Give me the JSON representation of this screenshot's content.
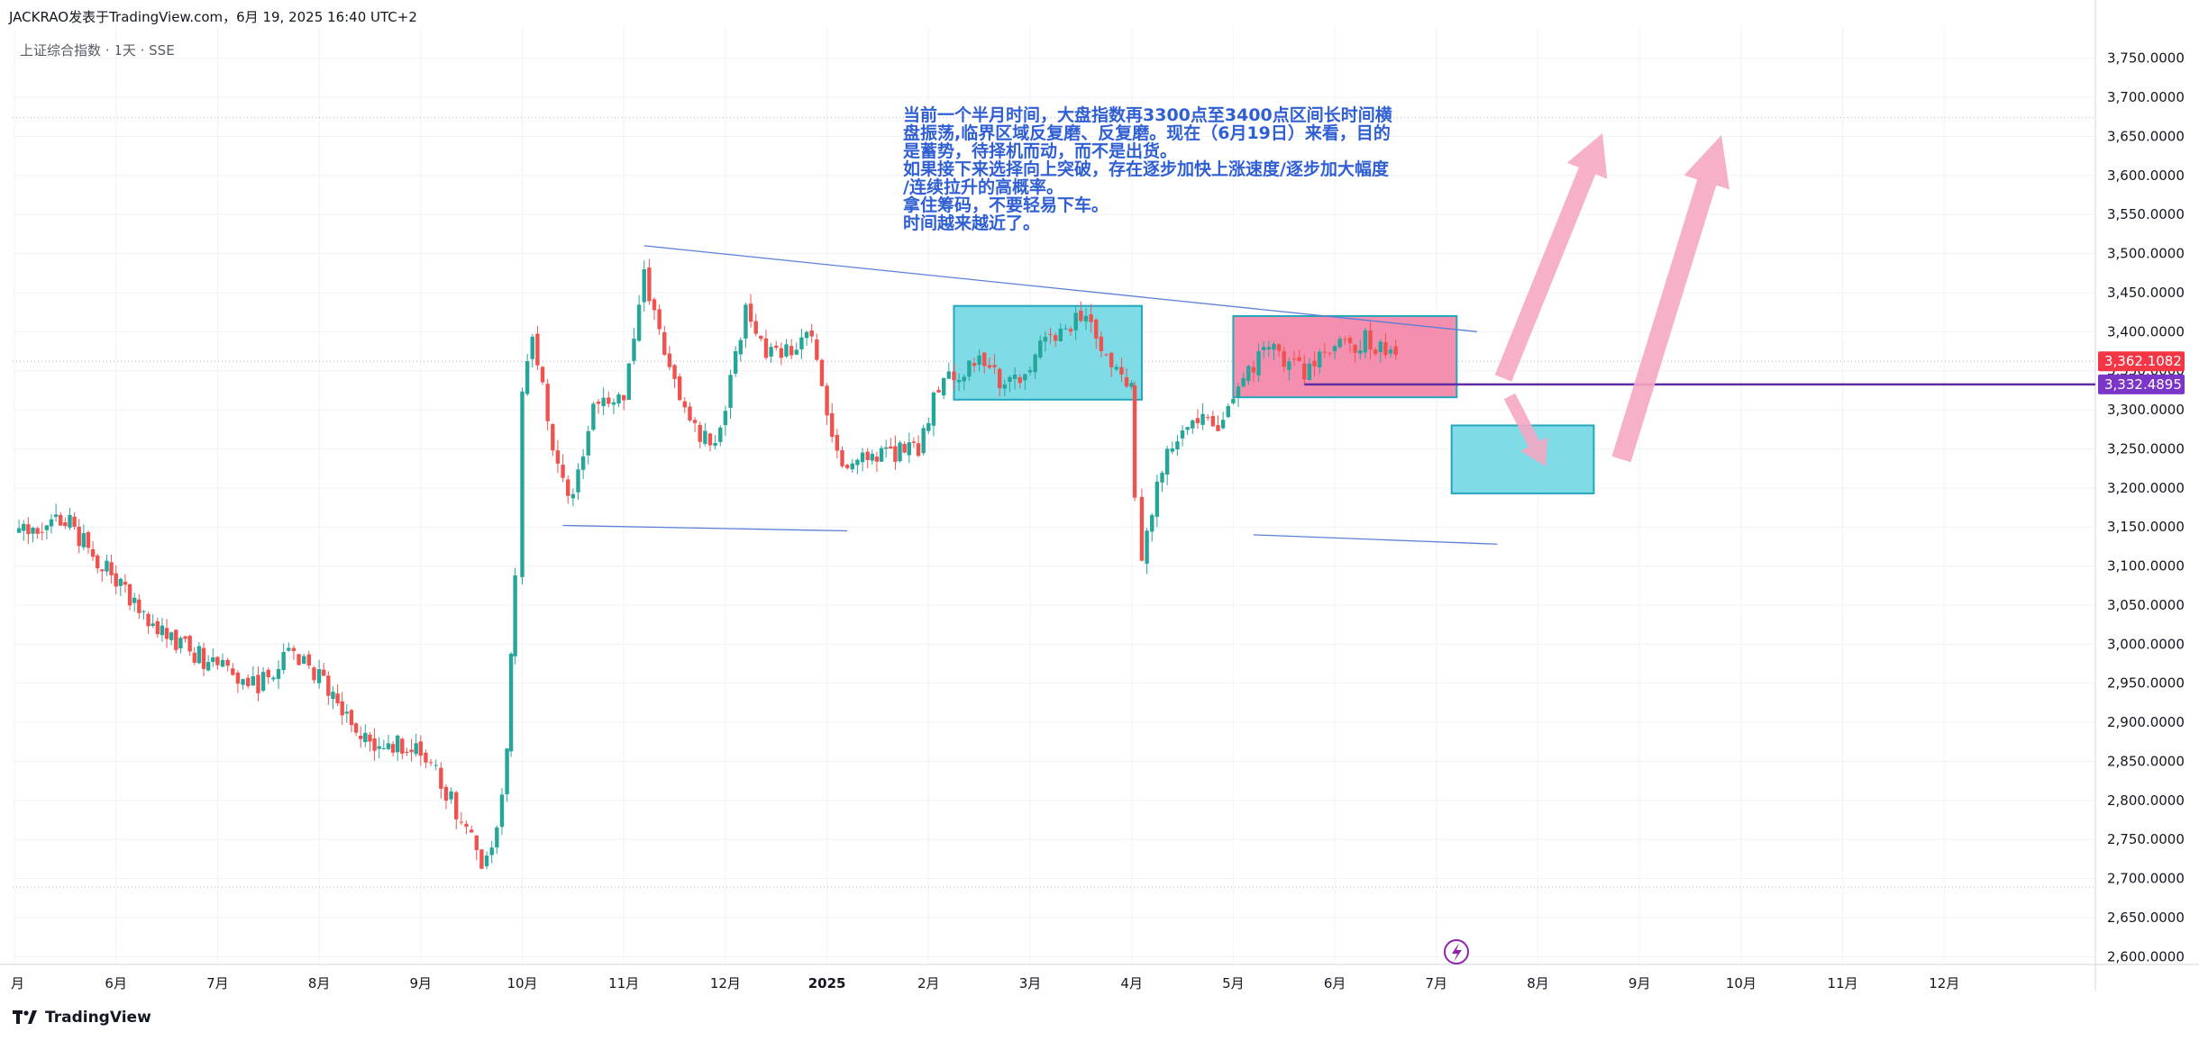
{
  "header": {
    "text": "JACKRAO发表于TradingView.com，6月 19, 2025 16:40 UTC+2"
  },
  "symbol_line": "上证综合指数 · 1天 · SSE",
  "annotation": {
    "lines": [
      "当前一个半月时间，大盘指数再3300点至3400点区间长时间横",
      "盘振荡,临界区域反复磨、反复磨。现在（6月19日）来看，目的",
      "是蓄势，待择机而动，而不是出货。",
      "如果接下来选择向上突破，存在逐步加快上涨速度/逐步加大幅度",
      "/连续拉升的高概率。",
      "拿住筹码，不要轻易下车。",
      "时间越来越近了。"
    ]
  },
  "footer": {
    "brand": "TradingView"
  },
  "colors": {
    "up": "#26a69a",
    "down": "#ef5350",
    "trendline": "#5b7fd6",
    "cyan_box": "#7fdce6",
    "pink_box": "#f58fb0",
    "arrow": "#f5a8c3",
    "last_price_tag": "#f23645",
    "level_tag": "#7b35c7"
  },
  "chart_data": {
    "type": "candlestick",
    "y_axis": {
      "ylim": [
        2590,
        3790
      ],
      "ticks": [
        "2,600.0000",
        "2,650.0000",
        "2,700.0000",
        "2,750.0000",
        "2,800.0000",
        "2,850.0000",
        "2,900.0000",
        "2,950.0000",
        "3,000.0000",
        "3,050.0000",
        "3,100.0000",
        "3,150.0000",
        "3,200.0000",
        "3,250.0000",
        "3,300.0000",
        "3,350.0000",
        "3,400.0000",
        "3,450.0000",
        "3,500.0000",
        "3,550.0000",
        "3,600.0000",
        "3,650.0000",
        "3,700.0000",
        "3,750.0000"
      ]
    },
    "x_axis": {
      "labels": [
        {
          "text": "月",
          "month_index": 0
        },
        {
          "text": "6月",
          "month_index": 1
        },
        {
          "text": "7月",
          "month_index": 2
        },
        {
          "text": "8月",
          "month_index": 3
        },
        {
          "text": "9月",
          "month_index": 4
        },
        {
          "text": "10月",
          "month_index": 5
        },
        {
          "text": "11月",
          "month_index": 6
        },
        {
          "text": "12月",
          "month_index": 7
        },
        {
          "text": "2025",
          "month_index": 8,
          "bold": true
        },
        {
          "text": "2月",
          "month_index": 9
        },
        {
          "text": "3月",
          "month_index": 10
        },
        {
          "text": "4月",
          "month_index": 11
        },
        {
          "text": "5月",
          "month_index": 12
        },
        {
          "text": "6月",
          "month_index": 13
        },
        {
          "text": "7月",
          "month_index": 14
        },
        {
          "text": "8月",
          "month_index": 15
        },
        {
          "text": "9月",
          "month_index": 16
        },
        {
          "text": "10月",
          "month_index": 17
        },
        {
          "text": "11月",
          "month_index": 18
        },
        {
          "text": "12月",
          "month_index": 19
        }
      ]
    },
    "price_tags": [
      {
        "value": 3362.1082,
        "label": "3,362.1082",
        "kind": "last"
      },
      {
        "value": 3332.4895,
        "label": "3,332.4895",
        "kind": "level"
      }
    ],
    "reference_levels": [
      3674,
      3362.1,
      2689
    ],
    "anchors": [
      {
        "m": 0.0,
        "p": 3140
      },
      {
        "m": 0.5,
        "p": 3160
      },
      {
        "m": 1.0,
        "p": 3080
      },
      {
        "m": 1.5,
        "p": 3010
      },
      {
        "m": 2.0,
        "p": 2970
      },
      {
        "m": 2.4,
        "p": 2945
      },
      {
        "m": 2.7,
        "p": 2985
      },
      {
        "m": 3.0,
        "p": 2960
      },
      {
        "m": 3.5,
        "p": 2870
      },
      {
        "m": 4.0,
        "p": 2870
      },
      {
        "m": 4.3,
        "p": 2800
      },
      {
        "m": 4.6,
        "p": 2720
      },
      {
        "m": 4.75,
        "p": 2760
      },
      {
        "m": 4.85,
        "p": 2860
      },
      {
        "m": 4.93,
        "p": 3100
      },
      {
        "m": 5.0,
        "p": 3330
      },
      {
        "m": 5.1,
        "p": 3400
      },
      {
        "m": 5.3,
        "p": 3260
      },
      {
        "m": 5.45,
        "p": 3180
      },
      {
        "m": 5.7,
        "p": 3300
      },
      {
        "m": 6.0,
        "p": 3320
      },
      {
        "m": 6.2,
        "p": 3470
      },
      {
        "m": 6.45,
        "p": 3360
      },
      {
        "m": 6.65,
        "p": 3280
      },
      {
        "m": 6.9,
        "p": 3250
      },
      {
        "m": 7.2,
        "p": 3430
      },
      {
        "m": 7.4,
        "p": 3370
      },
      {
        "m": 7.7,
        "p": 3380
      },
      {
        "m": 7.85,
        "p": 3400
      },
      {
        "m": 8.0,
        "p": 3300
      },
      {
        "m": 8.15,
        "p": 3220
      },
      {
        "m": 8.4,
        "p": 3240
      },
      {
        "m": 8.9,
        "p": 3250
      },
      {
        "m": 9.1,
        "p": 3330
      },
      {
        "m": 9.5,
        "p": 3360
      },
      {
        "m": 9.8,
        "p": 3330
      },
      {
        "m": 10.1,
        "p": 3380
      },
      {
        "m": 10.5,
        "p": 3420
      },
      {
        "m": 10.8,
        "p": 3360
      },
      {
        "m": 11.0,
        "p": 3330
      },
      {
        "m": 11.03,
        "p": 3200
      },
      {
        "m": 11.1,
        "p": 3110
      },
      {
        "m": 11.3,
        "p": 3230
      },
      {
        "m": 11.6,
        "p": 3290
      },
      {
        "m": 11.85,
        "p": 3285
      },
      {
        "m": 12.0,
        "p": 3320
      },
      {
        "m": 12.3,
        "p": 3380
      },
      {
        "m": 12.7,
        "p": 3350
      },
      {
        "m": 12.95,
        "p": 3375
      },
      {
        "m": 13.3,
        "p": 3390
      },
      {
        "m": 13.6,
        "p": 3362
      }
    ],
    "drawings": {
      "upper_trendline": [
        {
          "m": 6.2,
          "p": 3510
        },
        {
          "m": 14.4,
          "p": 3400
        }
      ],
      "lower_trendline_left": [
        {
          "m": 5.4,
          "p": 3152
        },
        {
          "m": 8.2,
          "p": 3145
        }
      ],
      "lower_trendline_right": [
        {
          "m": 12.2,
          "p": 3140
        },
        {
          "m": 14.6,
          "p": 3128
        }
      ],
      "cyan_box_1": {
        "m1": 9.25,
        "m2": 11.1,
        "p_top": 3433,
        "p_bottom": 3313
      },
      "pink_box": {
        "m1": 12.0,
        "m2": 14.2,
        "p_top": 3420,
        "p_bottom": 3316
      },
      "cyan_box_2": {
        "m1": 14.15,
        "m2": 15.55,
        "p_top": 3280,
        "p_bottom": 3193
      },
      "level_line": {
        "m_start": 12.7,
        "p": 3332.4895
      }
    }
  }
}
